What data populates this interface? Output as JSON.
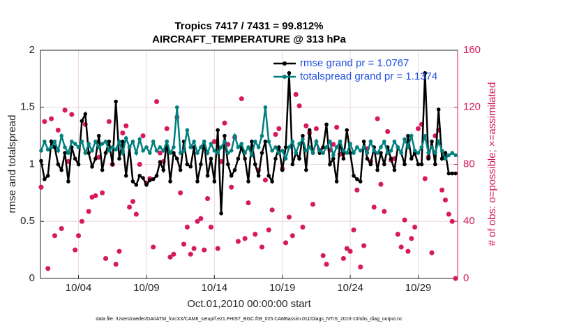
{
  "chart_data": {
    "type": "line",
    "title": "Tropics 7417 / 7431 = 99.812%",
    "subtitle": "AIRCRAFT_TEMPERATURE @ 313 hPa",
    "ylabel": "rmse and totalspread",
    "y2label": "# of obs: o=possible; ×=assimilated",
    "xlabel": "Oct.01,2010 00:00:00 start",
    "footnote": "data file: /Users/raeder/DAI/ATM_forcXX/CAM6_setup/f.e21.FHIST_BGC.f09_025.CAM6assim.011/Diags_NTrS_2010-10/obs_diag_output.nc",
    "xlim": [
      1.2,
      31.9
    ],
    "xticks": [
      {
        "value": 4,
        "label": "10/04"
      },
      {
        "value": 9,
        "label": "10/09"
      },
      {
        "value": 14,
        "label": "10/14"
      },
      {
        "value": 19,
        "label": "10/19"
      },
      {
        "value": 24,
        "label": "10/24"
      },
      {
        "value": 29,
        "label": "10/29"
      }
    ],
    "ylim": [
      0,
      2
    ],
    "yticks": [
      0,
      0.5,
      1,
      1.5,
      2
    ],
    "y2lim": [
      0,
      160
    ],
    "y2ticks": [
      0,
      40,
      80,
      120,
      160
    ],
    "grid": true,
    "legend": "upper right",
    "x": [
      1.25,
      1.5,
      1.75,
      2,
      2.25,
      2.5,
      2.75,
      3,
      3.25,
      3.5,
      3.75,
      4,
      4.25,
      4.5,
      4.75,
      5,
      5.25,
      5.5,
      5.75,
      6,
      6.25,
      6.5,
      6.75,
      7,
      7.25,
      7.5,
      7.75,
      8,
      8.25,
      8.5,
      8.75,
      9,
      9.25,
      9.5,
      9.75,
      10,
      10.25,
      10.5,
      10.75,
      11,
      11.25,
      11.5,
      11.75,
      12,
      12.25,
      12.5,
      12.75,
      13,
      13.25,
      13.5,
      13.75,
      14,
      14.25,
      14.5,
      14.75,
      15,
      15.25,
      15.5,
      15.75,
      16,
      16.25,
      16.5,
      16.75,
      17,
      17.25,
      17.5,
      17.75,
      18,
      18.25,
      18.5,
      18.75,
      19,
      19.25,
      19.5,
      19.75,
      20,
      20.25,
      20.5,
      20.75,
      21,
      21.25,
      21.5,
      21.75,
      22,
      22.25,
      22.5,
      22.75,
      23,
      23.25,
      23.5,
      23.75,
      24,
      24.25,
      24.5,
      24.75,
      25,
      25.25,
      25.5,
      25.75,
      26,
      26.25,
      26.5,
      26.75,
      27,
      27.25,
      27.5,
      27.75,
      28,
      28.25,
      28.5,
      28.75,
      29,
      29.25,
      29.5,
      29.75,
      30,
      30.25,
      30.5,
      30.75,
      31,
      31.25,
      31.5,
      31.75
    ],
    "series": [
      {
        "name": "rmse grand pr = 1.0767",
        "color": "#000000",
        "values": [
          1.03,
          0.87,
          0.9,
          1.2,
          1.15,
          1.0,
          0.95,
          1.1,
          0.85,
          1.15,
          1.05,
          1.0,
          1.38,
          1.44,
          1.1,
          0.98,
          1.05,
          1.25,
          0.95,
          1.1,
          1.2,
          1.0,
          1.55,
          1.05,
          1.2,
          0.9,
          1.15,
          0.85,
          0.82,
          0.9,
          0.88,
          0.82,
          0.86,
          0.87,
          0.9,
          1.02,
          0.95,
          1.2,
          0.85,
          1.1,
          1.05,
          0.95,
          1.2,
          1.0,
          0.98,
          1.15,
          0.85,
          1.0,
          1.2,
          0.9,
          1.05,
          0.85,
          1.3,
          0.57,
          1.25,
          1.0,
          0.9,
          0.95,
          1.05,
          1.15,
          1.05,
          0.85,
          1.2,
          1.0,
          0.9,
          1.1,
          1.2,
          0.9,
          0.85,
          1.05,
          1.15,
          0.95,
          1.15,
          1.8,
          1.0,
          1.1,
          1.05,
          1.25,
          0.95,
          1.3,
          1.1,
          1.2,
          1.1,
          1.15,
          1.35,
          1.0,
          1.05,
          0.85,
          1.2,
          1.05,
          1.3,
          1.1,
          0.9,
          0.87,
          0.85,
          1.2,
          1.05,
          1.0,
          1.15,
          0.95,
          1.1,
          1.0,
          1.15,
          1.05,
          0.95,
          1.15,
          1.1,
          1.0,
          1.25,
          1.05,
          1.1,
          1.0,
          1.0,
          1.8,
          1.05,
          1.2,
          1.0,
          1.48,
          1.05,
          1.1,
          0.92,
          0.92,
          0.92
        ]
      },
      {
        "name": "totalspread grand pr = 1.1374",
        "color": "#00807f",
        "values": [
          1.12,
          1.2,
          1.13,
          1.15,
          1.2,
          1.12,
          1.25,
          1.15,
          1.1,
          1.2,
          1.18,
          1.15,
          1.2,
          1.1,
          1.18,
          1.12,
          1.2,
          1.15,
          1.18,
          1.2,
          1.12,
          1.15,
          1.13,
          1.2,
          1.1,
          1.23,
          1.15,
          1.2,
          1.1,
          1.22,
          1.12,
          1.15,
          1.1,
          1.2,
          1.12,
          1.15,
          1.12,
          1.2,
          1.1,
          1.15,
          1.5,
          1.1,
          1.12,
          1.3,
          1.15,
          1.2,
          1.1,
          1.15,
          1.2,
          1.1,
          1.18,
          1.12,
          1.1,
          1.15,
          1.2,
          1.1,
          1.12,
          1.25,
          1.15,
          1.18,
          1.1,
          1.15,
          1.08,
          1.2,
          1.15,
          1.25,
          1.5,
          1.2,
          1.12,
          1.15,
          1.1,
          1.12,
          1.05,
          1.15,
          1.2,
          1.1,
          1.18,
          1.22,
          1.12,
          1.15,
          1.1,
          1.2,
          1.12,
          1.1,
          1.15,
          1.2,
          1.08,
          1.15,
          1.2,
          1.12,
          1.1,
          1.18,
          1.1,
          1.15,
          1.12,
          1.15,
          1.1,
          1.2,
          1.12,
          1.1,
          1.15,
          1.2,
          1.1,
          1.12,
          1.2,
          1.15,
          1.1,
          1.22,
          1.15,
          1.25,
          1.12,
          1.1,
          1.15,
          1.25,
          1.1,
          1.15,
          1.1,
          1.2,
          1.12,
          1.05,
          1.08,
          1.1,
          1.08
        ]
      },
      {
        "color": "#d6185e",
        "axis": "y2",
        "values": [
          64,
          110,
          7,
          112,
          30,
          104,
          35,
          118,
          82,
          115,
          20,
          30,
          40,
          108,
          47,
          57,
          58,
          85,
          60,
          14,
          110,
          80,
          10,
          19,
          102,
          107,
          50,
          54,
          45,
          80,
          100,
          67,
          70,
          22,
          124,
          88,
          82,
          105,
          15,
          17,
          113,
          60,
          24,
          36,
          17,
          21,
          40,
          42,
          20,
          56,
          36,
          96,
          21,
          82,
          109,
          94,
          64,
          99,
          26,
          126,
          28,
          53,
          91,
          31,
          76,
          22,
          69,
          34,
          48,
          101,
          105,
          77,
          25,
          43,
          30,
          129,
          121,
          36,
          107,
          102,
          52,
          105,
          90,
          16,
          10,
          90,
          94,
          106,
          87,
          14,
          21,
          19,
          34,
          62,
          8,
          23,
          91,
          82,
          50,
          112,
          66,
          47,
          103,
          83,
          84,
          31,
          22,
          41,
          19,
          28,
          36,
          105,
          108,
          70,
          85,
          18,
          100,
          104,
          62,
          55,
          45,
          40,
          0
        ]
      }
    ]
  }
}
